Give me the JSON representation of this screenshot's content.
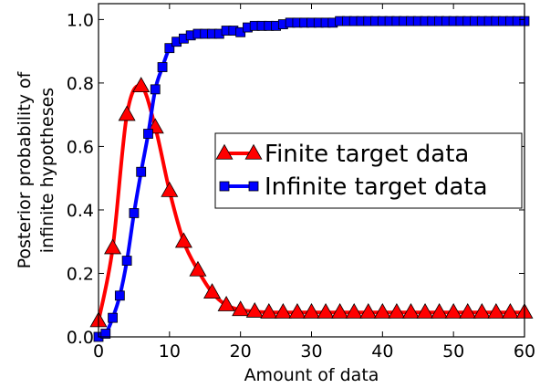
{
  "chart_data": {
    "type": "line",
    "xlabel": "Amount of data",
    "ylabel_lines": [
      "Posterior probability of",
      "infinite hypotheses"
    ],
    "xlim": [
      0,
      60
    ],
    "ylim": [
      0.0,
      1.05
    ],
    "x_ticks": [
      "0",
      "10",
      "20",
      "30",
      "40",
      "50",
      "60"
    ],
    "y_ticks": [
      "0.0",
      "0.2",
      "0.4",
      "0.6",
      "0.8",
      "1.0"
    ],
    "grid": false,
    "legend_position": "center-right",
    "series": [
      {
        "name": "Finite target data",
        "color": "#ff0000",
        "marker": "triangle",
        "x": [
          0,
          2,
          4,
          6,
          8,
          10,
          12,
          14,
          16,
          18,
          20,
          22,
          24,
          26,
          28,
          30,
          32,
          34,
          36,
          38,
          40,
          42,
          44,
          46,
          48,
          50,
          52,
          54,
          56,
          58,
          60
        ],
        "y": [
          0.05,
          0.28,
          0.7,
          0.79,
          0.66,
          0.46,
          0.3,
          0.21,
          0.14,
          0.1,
          0.085,
          0.08,
          0.077,
          0.077,
          0.077,
          0.077,
          0.077,
          0.077,
          0.077,
          0.077,
          0.077,
          0.077,
          0.077,
          0.077,
          0.077,
          0.077,
          0.077,
          0.077,
          0.077,
          0.077,
          0.077
        ]
      },
      {
        "name": "Infinite target data",
        "color": "#0000ff",
        "marker": "square",
        "x": [
          0,
          1,
          2,
          3,
          4,
          5,
          6,
          7,
          8,
          9,
          10,
          11,
          12,
          13,
          14,
          15,
          16,
          17,
          18,
          19,
          20,
          21,
          22,
          23,
          24,
          25,
          26,
          27,
          28,
          29,
          30,
          31,
          32,
          33,
          34,
          35,
          36,
          37,
          38,
          39,
          40,
          41,
          42,
          43,
          44,
          45,
          46,
          47,
          48,
          49,
          50,
          51,
          52,
          53,
          54,
          55,
          56,
          57,
          58,
          59,
          60
        ],
        "y": [
          0.0,
          0.01,
          0.06,
          0.13,
          0.24,
          0.39,
          0.52,
          0.64,
          0.78,
          0.85,
          0.91,
          0.93,
          0.94,
          0.95,
          0.955,
          0.955,
          0.955,
          0.955,
          0.965,
          0.965,
          0.96,
          0.975,
          0.98,
          0.98,
          0.98,
          0.98,
          0.985,
          0.99,
          0.99,
          0.99,
          0.99,
          0.99,
          0.99,
          0.99,
          0.995,
          0.995,
          0.995,
          0.995,
          0.995,
          0.995,
          0.995,
          0.995,
          0.995,
          0.995,
          0.995,
          0.995,
          0.995,
          0.995,
          0.995,
          0.995,
          0.995,
          0.995,
          0.995,
          0.995,
          0.995,
          0.995,
          0.995,
          0.995,
          0.995,
          0.995,
          0.995
        ]
      }
    ]
  }
}
